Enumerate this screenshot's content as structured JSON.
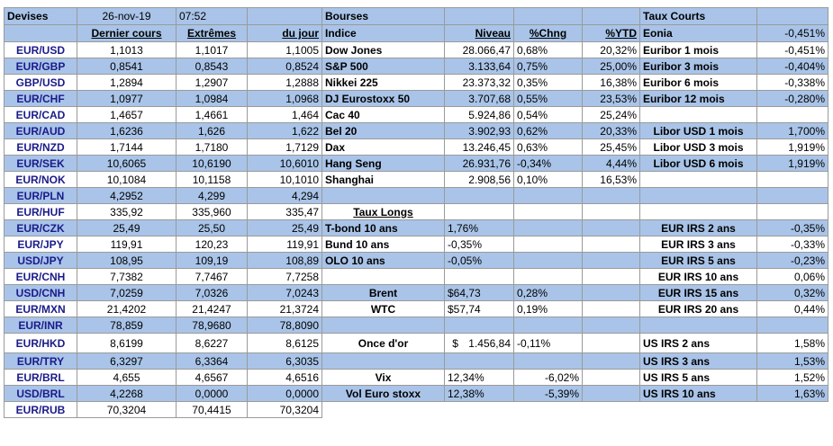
{
  "header": {
    "devises": "Devises",
    "date": "26-nov-19",
    "time": "07:52",
    "bourses": "Bourses",
    "taux_courts": "Taux Courts",
    "eonia_label": "Eonia",
    "eonia_value": "-0,451%"
  },
  "subheader": {
    "dernier_cours": "Dernier cours",
    "extremes": "Extrêmes",
    "du_jour": "du jour",
    "indice": "Indice",
    "niveau": "Niveau",
    "chng": "%Chng",
    "ytd": "%YTD"
  },
  "currencies": [
    {
      "pair": "EUR/USD",
      "last": "1,1013",
      "ext": "1,1017",
      "day": "1,1005"
    },
    {
      "pair": "EUR/GBP",
      "last": "0,8541",
      "ext": "0,8543",
      "day": "0,8524"
    },
    {
      "pair": "GBP/USD",
      "last": "1,2894",
      "ext": "1,2907",
      "day": "1,2888"
    },
    {
      "pair": "EUR/CHF",
      "last": "1,0977",
      "ext": "1,0984",
      "day": "1,0968"
    },
    {
      "pair": "EUR/CAD",
      "last": "1,4657",
      "ext": "1,4661",
      "day": "1,464"
    },
    {
      "pair": "EUR/AUD",
      "last": "1,6236",
      "ext": "1,626",
      "day": "1,622"
    },
    {
      "pair": "EUR/NZD",
      "last": "1,7144",
      "ext": "1,7180",
      "day": "1,7129"
    },
    {
      "pair": "EUR/SEK",
      "last": "10,6065",
      "ext": "10,6190",
      "day": "10,6010"
    },
    {
      "pair": "EUR/NOK",
      "last": "10,1084",
      "ext": "10,1158",
      "day": "10,1010"
    },
    {
      "pair": "EUR/PLN",
      "last": "4,2952",
      "ext": "4,299",
      "day": "4,294"
    },
    {
      "pair": "EUR/HUF",
      "last": "335,92",
      "ext": "335,960",
      "day": "335,47"
    },
    {
      "pair": "EUR/CZK",
      "last": "25,49",
      "ext": "25,50",
      "day": "25,49"
    },
    {
      "pair": "EUR/JPY",
      "last": "119,91",
      "ext": "120,23",
      "day": "119,91"
    },
    {
      "pair": "USD/JPY",
      "last": "108,95",
      "ext": "109,19",
      "day": "108,89"
    },
    {
      "pair": "EUR/CNH",
      "last": "7,7382",
      "ext": "7,7467",
      "day": "7,7258"
    },
    {
      "pair": "USD/CNH",
      "last": "7,0259",
      "ext": "7,0326",
      "day": "7,0243"
    },
    {
      "pair": "EUR/MXN",
      "last": "21,4202",
      "ext": "21,4247",
      "day": "21,3724"
    },
    {
      "pair": "EUR/INR",
      "last": "78,859",
      "ext": "78,9680",
      "day": "78,8090"
    },
    {
      "pair": "EUR/HKD",
      "last": "8,6199",
      "ext": "8,6227",
      "day": "8,6125"
    },
    {
      "pair": "EUR/TRY",
      "last": "6,3297",
      "ext": "6,3364",
      "day": "6,3035"
    },
    {
      "pair": "EUR/BRL",
      "last": "4,655",
      "ext": "4,6567",
      "day": "4,6516"
    },
    {
      "pair": "USD/BRL",
      "last": "4,2268",
      "ext": "0,0000",
      "day": "0,0000"
    },
    {
      "pair": "EUR/RUB",
      "last": "70,3204",
      "ext": "70,4415",
      "day": "70,3204"
    }
  ],
  "indices": [
    {
      "name": "Dow Jones",
      "level": "28.066,47",
      "chng": "0,68%",
      "ytd": "20,32%"
    },
    {
      "name": "S&P 500",
      "level": "3.133,64",
      "chng": "0,75%",
      "ytd": "25,00%"
    },
    {
      "name": "Nikkei 225",
      "level": "23.373,32",
      "chng": "0,35%",
      "ytd": "16,38%"
    },
    {
      "name": "DJ Eurostoxx 50",
      "level": "3.707,68",
      "chng": "0,55%",
      "ytd": "23,53%"
    },
    {
      "name": "Cac 40",
      "level": "5.924,86",
      "chng": "0,54%",
      "ytd": "25,24%"
    },
    {
      "name": "Bel 20",
      "level": "3.902,93",
      "chng": "0,62%",
      "ytd": "20,33%"
    },
    {
      "name": "Dax",
      "level": "13.246,45",
      "chng": "0,63%",
      "ytd": "25,45%"
    },
    {
      "name": "Hang Seng",
      "level": "26.931,76",
      "chng": "-0,34%",
      "ytd": "4,44%"
    },
    {
      "name": "Shanghai",
      "level": "2.908,56",
      "chng": "0,10%",
      "ytd": "16,53%"
    }
  ],
  "short_rates": [
    {
      "name": "Euribor 1 mois",
      "value": "-0,451%"
    },
    {
      "name": "Euribor 3 mois",
      "value": "-0,404%"
    },
    {
      "name": "Euribor 6 mois",
      "value": "-0,338%"
    },
    {
      "name": "Euribor 12 mois",
      "value": "-0,280%"
    },
    {
      "name": "Libor USD 1 mois",
      "value": "1,700%"
    },
    {
      "name": "Libor USD 3 mois",
      "value": "1,919%"
    },
    {
      "name": "Libor USD 6 mois",
      "value": "1,919%"
    }
  ],
  "taux_longs": {
    "title": "Taux Longs",
    "rows": [
      {
        "name": "T-bond 10 ans",
        "value": "1,76%"
      },
      {
        "name": "Bund 10 ans",
        "value": "-0,35%"
      },
      {
        "name": "OLO 10 ans",
        "value": "-0,05%"
      }
    ]
  },
  "commodities": [
    {
      "name": "Brent",
      "value": "$64,73",
      "chng": "0,28%"
    },
    {
      "name": "WTC",
      "value": "$57,74",
      "chng": "0,19%"
    }
  ],
  "gold": {
    "name": "Once d'or",
    "currency": "$",
    "value": "1.456,84",
    "chng": "-0,11%"
  },
  "volatility": [
    {
      "name": "Vix",
      "value": "12,34%",
      "chng": "-6,02%"
    },
    {
      "name": "Vol Euro stoxx",
      "value": "12,38%",
      "chng": "-5,39%"
    }
  ],
  "eur_irs": [
    {
      "name": "EUR IRS 2 ans",
      "value": "-0,35%"
    },
    {
      "name": "EUR IRS 3 ans",
      "value": "-0,33%"
    },
    {
      "name": "EUR IRS 5 ans",
      "value": "-0,23%"
    },
    {
      "name": "EUR IRS 10 ans",
      "value": "0,06%"
    },
    {
      "name": "EUR IRS 15 ans",
      "value": "0,32%"
    },
    {
      "name": "EUR IRS 20 ans",
      "value": "0,44%"
    }
  ],
  "us_irs": [
    {
      "name": "US IRS 2 ans",
      "value": "1,58%"
    },
    {
      "name": "US IRS 3 ans",
      "value": "1,53%"
    },
    {
      "name": "US IRS 5 ans",
      "value": "1,52%"
    },
    {
      "name": "US IRS 10 ans",
      "value": "1,63%"
    }
  ],
  "colors": {
    "row_blue": "#a9c4e8",
    "row_white": "#ffffff",
    "border": "#9a9a9a"
  }
}
